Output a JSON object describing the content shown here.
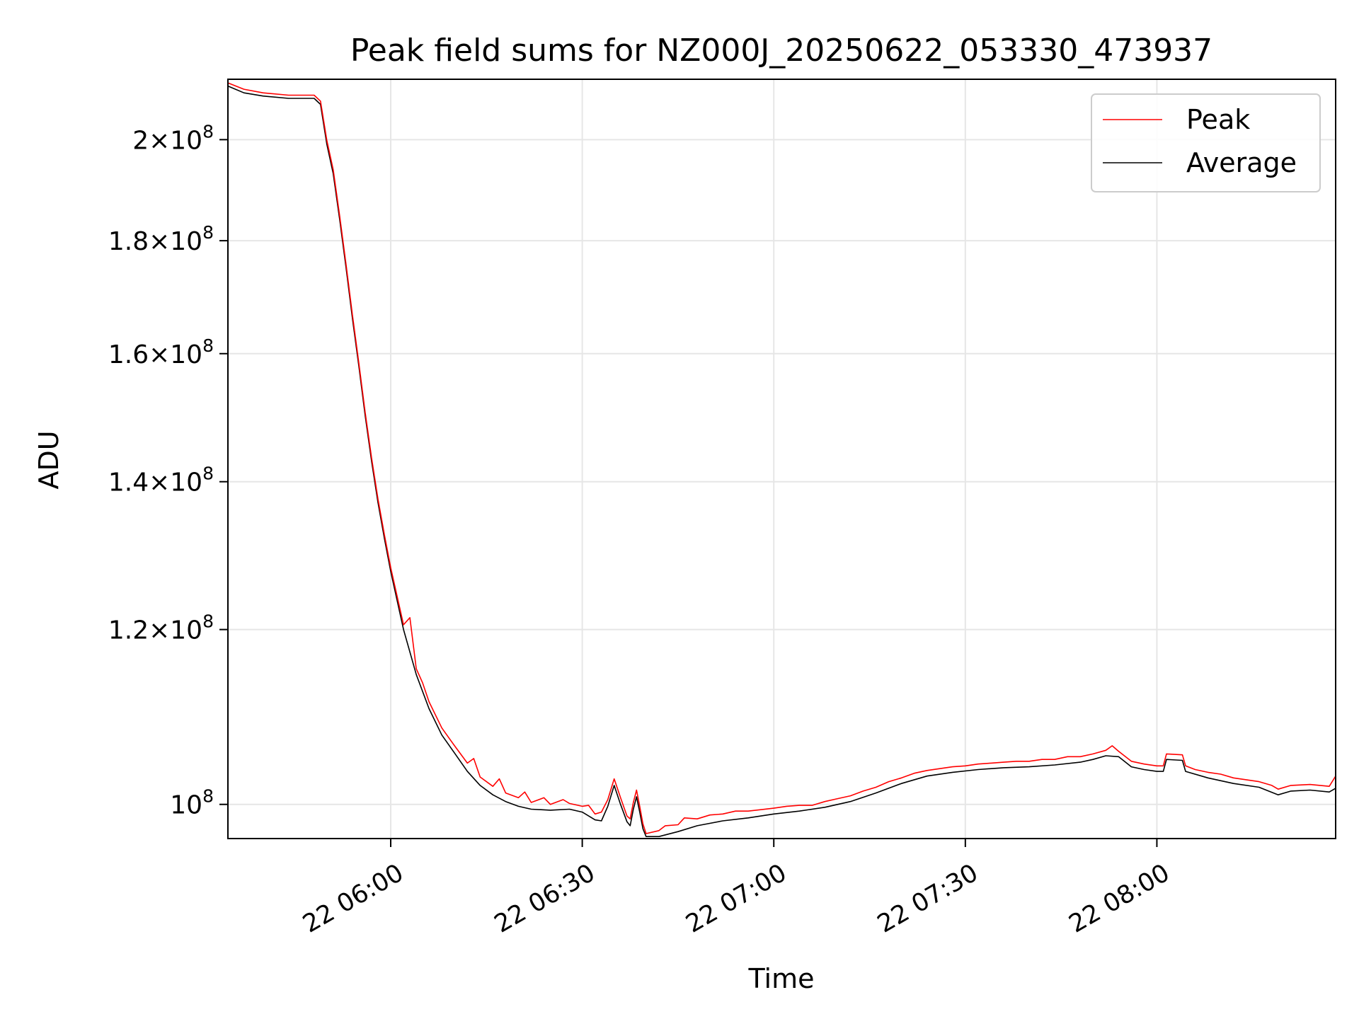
{
  "chart_data": {
    "type": "line",
    "title": "Peak field sums for NZ000J_20250622_053330_473937",
    "xlabel": "Time",
    "ylabel": "ADU",
    "x_range": [
      "22 05:34:30",
      "22 08:28:00"
    ],
    "y_range": [
      96500000,
      213000000
    ],
    "y_scale": "log",
    "grid": true,
    "legend_position": "top-right",
    "x_ticks": [
      {
        "time": "06:00",
        "label": "22 06:00"
      },
      {
        "time": "06:30",
        "label": "22 06:30"
      },
      {
        "time": "07:00",
        "label": "22 07:00"
      },
      {
        "time": "07:30",
        "label": "22 07:30"
      },
      {
        "time": "08:00",
        "label": "22 08:00"
      }
    ],
    "y_ticks": [
      {
        "value": 100000000,
        "mant": "",
        "exp": "8"
      },
      {
        "value": 120000000,
        "mant": "1.2",
        "exp": "8"
      },
      {
        "value": 140000000,
        "mant": "1.4",
        "exp": "8"
      },
      {
        "value": 160000000,
        "mant": "1.6",
        "exp": "8"
      },
      {
        "value": 180000000,
        "mant": "1.8",
        "exp": "8"
      },
      {
        "value": 200000000,
        "mant": "2",
        "exp": "8"
      }
    ],
    "series": [
      {
        "name": "Average",
        "color": "#000000",
        "points": [
          [
            "05:34:30",
            211500000
          ],
          [
            "05:37",
            210000000
          ],
          [
            "05:40",
            209300000
          ],
          [
            "05:44",
            208800000
          ],
          [
            "05:48",
            208800000
          ],
          [
            "05:49",
            207500000
          ],
          [
            "05:50",
            199000000
          ],
          [
            "05:51",
            193000000
          ],
          [
            "05:52",
            184000000
          ],
          [
            "05:53",
            175000000
          ],
          [
            "05:54",
            166000000
          ],
          [
            "05:55",
            158000000
          ],
          [
            "05:56",
            150000000
          ],
          [
            "05:57",
            143000000
          ],
          [
            "05:58",
            137000000
          ],
          [
            "05:59",
            132000000
          ],
          [
            "06:00",
            127500000
          ],
          [
            "06:02",
            120000000
          ],
          [
            "06:04",
            114500000
          ],
          [
            "06:06",
            110500000
          ],
          [
            "06:08",
            107500000
          ],
          [
            "06:10",
            105500000
          ],
          [
            "06:12",
            103500000
          ],
          [
            "06:14",
            102000000
          ],
          [
            "06:16",
            101000000
          ],
          [
            "06:18",
            100300000
          ],
          [
            "06:20",
            99800000
          ],
          [
            "06:22",
            99500000
          ],
          [
            "06:25",
            99400000
          ],
          [
            "06:28",
            99500000
          ],
          [
            "06:30",
            99200000
          ],
          [
            "06:32",
            98400000
          ],
          [
            "06:33",
            98300000
          ],
          [
            "06:34",
            99800000
          ],
          [
            "06:35",
            102000000
          ],
          [
            "06:36",
            100000000
          ],
          [
            "06:37",
            98200000
          ],
          [
            "06:37:30",
            97800000
          ],
          [
            "06:38",
            99500000
          ],
          [
            "06:38:30",
            100800000
          ],
          [
            "06:39",
            99200000
          ],
          [
            "06:39:30",
            97500000
          ],
          [
            "06:40",
            96700000
          ],
          [
            "06:42",
            96700000
          ],
          [
            "06:45",
            97200000
          ],
          [
            "06:48",
            97800000
          ],
          [
            "06:52",
            98300000
          ],
          [
            "06:56",
            98600000
          ],
          [
            "07:00",
            99000000
          ],
          [
            "07:04",
            99300000
          ],
          [
            "07:08",
            99700000
          ],
          [
            "07:12",
            100300000
          ],
          [
            "07:16",
            101200000
          ],
          [
            "07:20",
            102200000
          ],
          [
            "07:24",
            103000000
          ],
          [
            "07:28",
            103400000
          ],
          [
            "07:32",
            103700000
          ],
          [
            "07:36",
            103900000
          ],
          [
            "07:40",
            104000000
          ],
          [
            "07:44",
            104200000
          ],
          [
            "07:48",
            104500000
          ],
          [
            "07:50",
            104800000
          ],
          [
            "07:52",
            105200000
          ],
          [
            "07:54",
            105100000
          ],
          [
            "07:56",
            104000000
          ],
          [
            "07:58",
            103700000
          ],
          [
            "08:00",
            103500000
          ],
          [
            "08:01",
            103500000
          ],
          [
            "08:01:30",
            104800000
          ],
          [
            "08:04",
            104700000
          ],
          [
            "08:04:30",
            103500000
          ],
          [
            "08:08",
            102800000
          ],
          [
            "08:12",
            102200000
          ],
          [
            "08:16",
            101800000
          ],
          [
            "08:19",
            101000000
          ],
          [
            "08:21",
            101400000
          ],
          [
            "08:24",
            101500000
          ],
          [
            "08:27",
            101300000
          ],
          [
            "08:28",
            101700000
          ]
        ]
      },
      {
        "name": "Peak",
        "color": "#ff0000",
        "points": [
          [
            "05:34:30",
            212200000
          ],
          [
            "05:37",
            210800000
          ],
          [
            "05:40",
            210000000
          ],
          [
            "05:44",
            209500000
          ],
          [
            "05:48",
            209500000
          ],
          [
            "05:49",
            208200000
          ],
          [
            "05:50",
            199800000
          ],
          [
            "05:51",
            193800000
          ],
          [
            "05:52",
            184700000
          ],
          [
            "05:53",
            175600000
          ],
          [
            "05:54",
            166600000
          ],
          [
            "05:55",
            158500000
          ],
          [
            "05:56",
            150500000
          ],
          [
            "05:57",
            143500000
          ],
          [
            "05:58",
            137500000
          ],
          [
            "05:59",
            132500000
          ],
          [
            "06:00",
            128000000
          ],
          [
            "06:02",
            120600000
          ],
          [
            "06:03",
            121500000
          ],
          [
            "06:04",
            115200000
          ],
          [
            "06:05",
            113500000
          ],
          [
            "06:06",
            111300000
          ],
          [
            "06:08",
            108300000
          ],
          [
            "06:10",
            106300000
          ],
          [
            "06:12",
            104400000
          ],
          [
            "06:13",
            104900000
          ],
          [
            "06:14",
            102900000
          ],
          [
            "06:16",
            101900000
          ],
          [
            "06:17",
            102700000
          ],
          [
            "06:18",
            101200000
          ],
          [
            "06:20",
            100700000
          ],
          [
            "06:21",
            101300000
          ],
          [
            "06:22",
            100200000
          ],
          [
            "06:24",
            100700000
          ],
          [
            "06:25",
            100000000
          ],
          [
            "06:27",
            100500000
          ],
          [
            "06:28",
            100100000
          ],
          [
            "06:30",
            99800000
          ],
          [
            "06:31",
            99900000
          ],
          [
            "06:32",
            99000000
          ],
          [
            "06:33",
            99200000
          ],
          [
            "06:34",
            100500000
          ],
          [
            "06:35",
            102700000
          ],
          [
            "06:36",
            100700000
          ],
          [
            "06:37",
            98800000
          ],
          [
            "06:37:30",
            98500000
          ],
          [
            "06:38",
            100200000
          ],
          [
            "06:38:30",
            101500000
          ],
          [
            "06:39",
            99800000
          ],
          [
            "06:39:30",
            98000000
          ],
          [
            "06:40",
            97000000
          ],
          [
            "06:42",
            97300000
          ],
          [
            "06:43",
            97800000
          ],
          [
            "06:45",
            97900000
          ],
          [
            "06:46",
            98600000
          ],
          [
            "06:48",
            98500000
          ],
          [
            "06:50",
            98900000
          ],
          [
            "06:52",
            99000000
          ],
          [
            "06:54",
            99300000
          ],
          [
            "06:56",
            99300000
          ],
          [
            "07:00",
            99600000
          ],
          [
            "07:02",
            99800000
          ],
          [
            "07:04",
            99900000
          ],
          [
            "07:06",
            99900000
          ],
          [
            "07:08",
            100300000
          ],
          [
            "07:10",
            100600000
          ],
          [
            "07:12",
            100900000
          ],
          [
            "07:14",
            101400000
          ],
          [
            "07:16",
            101800000
          ],
          [
            "07:18",
            102400000
          ],
          [
            "07:20",
            102800000
          ],
          [
            "07:22",
            103300000
          ],
          [
            "07:24",
            103600000
          ],
          [
            "07:26",
            103800000
          ],
          [
            "07:28",
            104000000
          ],
          [
            "07:30",
            104100000
          ],
          [
            "07:32",
            104300000
          ],
          [
            "07:34",
            104400000
          ],
          [
            "07:36",
            104500000
          ],
          [
            "07:38",
            104600000
          ],
          [
            "07:40",
            104600000
          ],
          [
            "07:42",
            104800000
          ],
          [
            "07:44",
            104800000
          ],
          [
            "07:46",
            105100000
          ],
          [
            "07:48",
            105100000
          ],
          [
            "07:50",
            105400000
          ],
          [
            "07:52",
            105800000
          ],
          [
            "07:53",
            106300000
          ],
          [
            "07:54",
            105700000
          ],
          [
            "07:56",
            104600000
          ],
          [
            "07:58",
            104300000
          ],
          [
            "08:00",
            104100000
          ],
          [
            "08:01",
            104100000
          ],
          [
            "08:01:30",
            105400000
          ],
          [
            "08:04",
            105300000
          ],
          [
            "08:04:30",
            104100000
          ],
          [
            "08:06",
            103700000
          ],
          [
            "08:08",
            103400000
          ],
          [
            "08:10",
            103200000
          ],
          [
            "08:12",
            102800000
          ],
          [
            "08:14",
            102600000
          ],
          [
            "08:16",
            102400000
          ],
          [
            "08:18",
            102000000
          ],
          [
            "08:19",
            101600000
          ],
          [
            "08:21",
            102000000
          ],
          [
            "08:24",
            102100000
          ],
          [
            "08:27",
            101900000
          ],
          [
            "08:28",
            103000000
          ]
        ]
      }
    ]
  }
}
